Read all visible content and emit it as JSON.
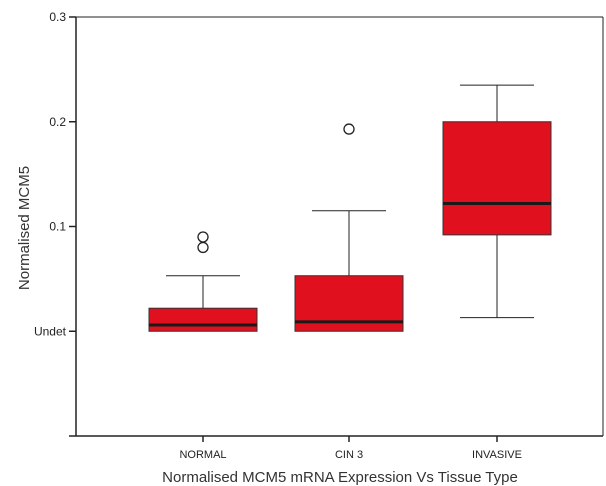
{
  "chart_data": {
    "type": "boxplot",
    "title": "",
    "xlabel": "Normalised MCM5 mRNA Expression Vs Tissue Type",
    "ylabel": "Normalised MCM5",
    "y_baseline_label": "Undet",
    "y_ticks": [
      {
        "value": 0,
        "label": "Undet"
      },
      {
        "value": 0.1,
        "label": "0.1"
      },
      {
        "value": 0.2,
        "label": "0.2"
      },
      {
        "value": 0.3,
        "label": "0.3"
      }
    ],
    "ylim": [
      -0.1,
      0.3
    ],
    "categories": [
      "NORMAL",
      "CIN 3",
      "INVASIVE"
    ],
    "box_color": "#e0101e",
    "boxes": [
      {
        "category": "NORMAL",
        "whisker_low": 0.0,
        "q1": 0.0,
        "median": 0.006,
        "q3": 0.022,
        "whisker_high": 0.053,
        "outliers": [
          0.09,
          0.08
        ]
      },
      {
        "category": "CIN 3",
        "whisker_low": 0.0,
        "q1": 0.0,
        "median": 0.009,
        "q3": 0.053,
        "whisker_high": 0.115,
        "outliers": [
          0.193
        ]
      },
      {
        "category": "INVASIVE",
        "whisker_low": 0.013,
        "q1": 0.092,
        "median": 0.122,
        "q3": 0.2,
        "whisker_high": 0.235,
        "outliers": []
      }
    ]
  }
}
